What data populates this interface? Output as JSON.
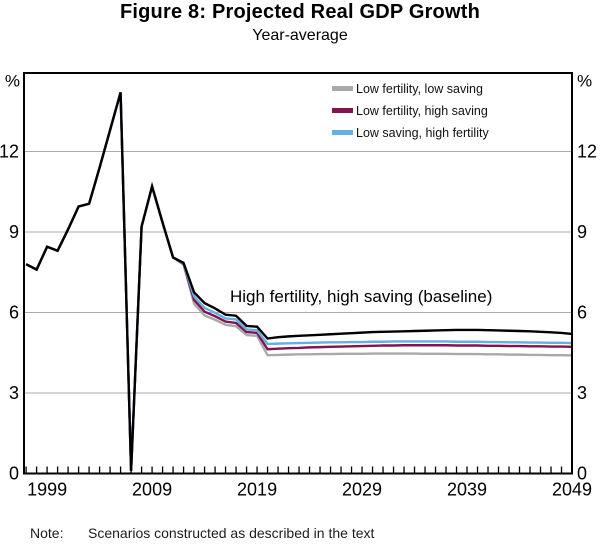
{
  "chart_data": {
    "type": "line",
    "title": "Figure 8: Projected Real GDP Growth",
    "subtitle": "Year-average",
    "unit": "%",
    "grid": "horizontal",
    "legend_position": "top-right",
    "annotation": "High fertility, high saving (baseline)",
    "xlim": [
      1996.8,
      2049
    ],
    "ylim": [
      0,
      14.93
    ],
    "y_ticks": [
      0,
      3,
      6,
      9,
      12
    ],
    "x_tick_labels": [
      "1999",
      "2009",
      "2019",
      "2029",
      "2039",
      "2049"
    ],
    "years": [
      1997,
      1998,
      1999,
      2000,
      2001,
      2002,
      2003,
      2004,
      2005,
      2006,
      2007,
      2008,
      2009,
      2010,
      2011,
      2012,
      2013,
      2014,
      2015,
      2016,
      2017,
      2018,
      2019,
      2020,
      2021,
      2022,
      2023,
      2024,
      2025,
      2026,
      2027,
      2028,
      2029,
      2030,
      2031,
      2032,
      2033,
      2034,
      2035,
      2036,
      2037,
      2038,
      2039,
      2040,
      2041,
      2042,
      2043,
      2044,
      2045,
      2046,
      2047,
      2048,
      2049
    ],
    "series": [
      {
        "name": "Low fertility, low saving",
        "color": "#a9a9a9",
        "in_legend": true,
        "values": [
          7.8,
          7.6,
          8.45,
          8.3,
          9.1,
          9.95,
          10.05,
          11.4,
          12.8,
          14.2,
          0.1,
          9.2,
          10.7,
          9.35,
          8.05,
          7.79,
          6.33,
          5.89,
          5.73,
          5.54,
          5.49,
          5.16,
          5.13,
          4.41,
          4.42,
          4.43,
          4.44,
          4.44,
          4.45,
          4.45,
          4.46,
          4.46,
          4.46,
          4.47,
          4.47,
          4.47,
          4.47,
          4.47,
          4.46,
          4.46,
          4.46,
          4.45,
          4.45,
          4.45,
          4.44,
          4.44,
          4.43,
          4.43,
          4.42,
          4.42,
          4.41,
          4.41,
          4.4
        ]
      },
      {
        "name": "Low fertility, high saving",
        "color": "#83134e",
        "in_legend": true,
        "values": [
          7.8,
          7.6,
          8.45,
          8.3,
          9.1,
          9.95,
          10.05,
          11.4,
          12.8,
          14.2,
          0.1,
          9.2,
          10.7,
          9.35,
          8.05,
          7.81,
          6.47,
          6.03,
          5.86,
          5.66,
          5.61,
          5.27,
          5.24,
          4.63,
          4.65,
          4.67,
          4.68,
          4.7,
          4.71,
          4.72,
          4.73,
          4.74,
          4.75,
          4.76,
          4.77,
          4.77,
          4.78,
          4.78,
          4.78,
          4.78,
          4.78,
          4.77,
          4.77,
          4.77,
          4.76,
          4.76,
          4.75,
          4.75,
          4.74,
          4.74,
          4.73,
          4.73,
          4.72
        ]
      },
      {
        "name": "Low saving, high fertility",
        "color": "#64b0e2",
        "in_legend": true,
        "values": [
          7.8,
          7.6,
          8.45,
          8.3,
          9.1,
          9.95,
          10.05,
          11.4,
          12.8,
          14.2,
          0.1,
          9.2,
          10.7,
          9.35,
          8.05,
          7.83,
          6.6,
          6.17,
          5.99,
          5.78,
          5.74,
          5.37,
          5.34,
          4.83,
          4.84,
          4.85,
          4.86,
          4.87,
          4.88,
          4.89,
          4.89,
          4.9,
          4.9,
          4.91,
          4.91,
          4.92,
          4.92,
          4.92,
          4.92,
          4.92,
          4.92,
          4.91,
          4.91,
          4.91,
          4.9,
          4.9,
          4.89,
          4.89,
          4.88,
          4.88,
          4.87,
          4.87,
          4.86
        ]
      },
      {
        "name": "High fertility, high saving (baseline)",
        "color": "#000000",
        "in_legend": false,
        "values": [
          7.8,
          7.6,
          8.45,
          8.3,
          9.1,
          9.95,
          10.05,
          11.4,
          12.8,
          14.2,
          0.1,
          9.2,
          10.7,
          9.35,
          8.05,
          7.85,
          6.75,
          6.35,
          6.15,
          5.92,
          5.88,
          5.5,
          5.47,
          5.03,
          5.08,
          5.11,
          5.13,
          5.15,
          5.17,
          5.19,
          5.21,
          5.23,
          5.25,
          5.27,
          5.28,
          5.29,
          5.3,
          5.31,
          5.32,
          5.33,
          5.34,
          5.35,
          5.35,
          5.35,
          5.34,
          5.33,
          5.32,
          5.31,
          5.3,
          5.28,
          5.26,
          5.24,
          5.2
        ]
      }
    ],
    "colors": {
      "grid": "#ababab",
      "axis": "#000000"
    }
  },
  "note": {
    "label": "Note:",
    "text": "Scenarios constructed as described in the text"
  }
}
